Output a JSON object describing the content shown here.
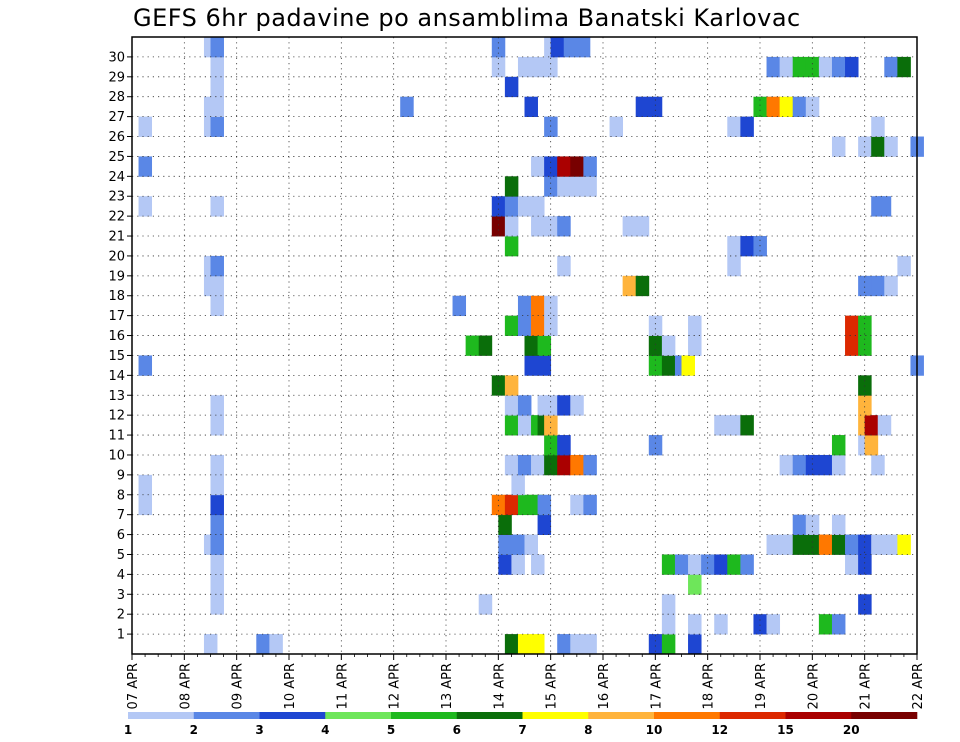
{
  "title": "GEFS 6hr padavine po ansamblima Banatski Karlovac",
  "chart_data": {
    "type": "heatmap",
    "title": "GEFS 6hr padavine po ansamblima Banatski Karlovac",
    "x_start": "07 APR",
    "x_step_hours": 6,
    "x_steps": 60,
    "x_tick_labels": [
      "07 APR",
      "08 APR",
      "09 APR",
      "10 APR",
      "11 APR",
      "12 APR",
      "13 APR",
      "14 APR",
      "15 APR",
      "16 APR",
      "17 APR",
      "18 APR",
      "19 APR",
      "20 APR",
      "21 APR",
      "22 APR"
    ],
    "y_tick_labels": [
      "1",
      "2",
      "3",
      "4",
      "5",
      "6",
      "7",
      "8",
      "9",
      "10",
      "11",
      "12",
      "13",
      "14",
      "15",
      "16",
      "17",
      "18",
      "19",
      "20",
      "21",
      "22",
      "23",
      "24",
      "25",
      "26",
      "27",
      "28",
      "29",
      "30"
    ],
    "ensemble_members": 30,
    "grid": true,
    "colorbar": {
      "labels": [
        "1",
        "2",
        "3",
        "4",
        "5",
        "6",
        "7",
        "8",
        "10",
        "12",
        "15",
        "20"
      ],
      "colors": [
        "#b4c8f5",
        "#5a87e6",
        "#1e46d2",
        "#6ee65a",
        "#1eb91e",
        "#0a6e0a",
        "#ffff00",
        "#ffb43c",
        "#ff7800",
        "#dc2800",
        "#aa0000",
        "#780000"
      ]
    },
    "points": [
      [
        5.5,
        0,
        1
      ],
      [
        9.5,
        0,
        2
      ],
      [
        10.5,
        0,
        1
      ],
      [
        28.5,
        0,
        6
      ],
      [
        29.5,
        0,
        7
      ],
      [
        30.5,
        0,
        7
      ],
      [
        32.5,
        0,
        2
      ],
      [
        33.5,
        0,
        1
      ],
      [
        34.5,
        0,
        1
      ],
      [
        39.5,
        0,
        3
      ],
      [
        40.5,
        0,
        5
      ],
      [
        42.5,
        0,
        3
      ],
      [
        40.5,
        1,
        1
      ],
      [
        42.5,
        1,
        1
      ],
      [
        44.5,
        1,
        1
      ],
      [
        47.5,
        1,
        3
      ],
      [
        48.5,
        1,
        1
      ],
      [
        52.5,
        1,
        5
      ],
      [
        53.5,
        1,
        2
      ],
      [
        6,
        2,
        1
      ],
      [
        26.5,
        2,
        1
      ],
      [
        40.5,
        2,
        1
      ],
      [
        55.5,
        2,
        3
      ],
      [
        6,
        3,
        1
      ],
      [
        42.5,
        3,
        4
      ],
      [
        6,
        4,
        1
      ],
      [
        28,
        4,
        3
      ],
      [
        29,
        4,
        1
      ],
      [
        30.5,
        4,
        1
      ],
      [
        40.5,
        4,
        5
      ],
      [
        41.5,
        4,
        2
      ],
      [
        42.5,
        4,
        1
      ],
      [
        43.5,
        4,
        2
      ],
      [
        44.5,
        4,
        3
      ],
      [
        45.5,
        4,
        5
      ],
      [
        46.5,
        4,
        2
      ],
      [
        54.5,
        4,
        1
      ],
      [
        55.5,
        4,
        3
      ],
      [
        5.5,
        5,
        1
      ],
      [
        6,
        5,
        2
      ],
      [
        28,
        5,
        2
      ],
      [
        29,
        5,
        2
      ],
      [
        30,
        5,
        1
      ],
      [
        48.5,
        5,
        1
      ],
      [
        49.5,
        5,
        1
      ],
      [
        50.5,
        5,
        6
      ],
      [
        51.5,
        5,
        6
      ],
      [
        52.5,
        5,
        9
      ],
      [
        53.5,
        5,
        6
      ],
      [
        54.5,
        5,
        2
      ],
      [
        55.5,
        5,
        3
      ],
      [
        56.5,
        5,
        1
      ],
      [
        57.5,
        5,
        1
      ],
      [
        58.5,
        5,
        7
      ],
      [
        6,
        6,
        2
      ],
      [
        28,
        6,
        6
      ],
      [
        31,
        6,
        3
      ],
      [
        50.5,
        6,
        2
      ],
      [
        51.5,
        6,
        1
      ],
      [
        53.5,
        6,
        1
      ],
      [
        0.5,
        7,
        1
      ],
      [
        6,
        7,
        3
      ],
      [
        27.5,
        7,
        9
      ],
      [
        28.5,
        7,
        10
      ],
      [
        29.5,
        7,
        5
      ],
      [
        30.5,
        7,
        5
      ],
      [
        31,
        7,
        2
      ],
      [
        33.5,
        7,
        1
      ],
      [
        34.5,
        7,
        2
      ],
      [
        0.5,
        8,
        1
      ],
      [
        6,
        8,
        1
      ],
      [
        29,
        8,
        1
      ],
      [
        6,
        9,
        1
      ],
      [
        28.5,
        9,
        1
      ],
      [
        29.5,
        9,
        2
      ],
      [
        30.5,
        9,
        1
      ],
      [
        31.5,
        9,
        6
      ],
      [
        32.5,
        9,
        11
      ],
      [
        33.5,
        9,
        9
      ],
      [
        34.5,
        9,
        2
      ],
      [
        49.5,
        9,
        1
      ],
      [
        50.5,
        9,
        2
      ],
      [
        51.5,
        9,
        3
      ],
      [
        52.5,
        9,
        3
      ],
      [
        53.5,
        9,
        1
      ],
      [
        56.5,
        9,
        1
      ],
      [
        31.5,
        10,
        5
      ],
      [
        32.5,
        10,
        3
      ],
      [
        39.5,
        10,
        2
      ],
      [
        53.5,
        10,
        5
      ],
      [
        55.5,
        10,
        1
      ],
      [
        56,
        10,
        8
      ],
      [
        6,
        11,
        1
      ],
      [
        28.5,
        11,
        5
      ],
      [
        29.5,
        11,
        1
      ],
      [
        30.5,
        11,
        5
      ],
      [
        31,
        11,
        6
      ],
      [
        31.5,
        11,
        8
      ],
      [
        44.5,
        11,
        1
      ],
      [
        45.5,
        11,
        1
      ],
      [
        46.5,
        11,
        6
      ],
      [
        55.5,
        11,
        8
      ],
      [
        56,
        11,
        11
      ],
      [
        57,
        11,
        1
      ],
      [
        6,
        12,
        1
      ],
      [
        28.5,
        12,
        1
      ],
      [
        29.5,
        12,
        2
      ],
      [
        31,
        12,
        1
      ],
      [
        31.5,
        12,
        1
      ],
      [
        32.5,
        12,
        3
      ],
      [
        33.5,
        12,
        1
      ],
      [
        55.5,
        12,
        8
      ],
      [
        27.5,
        13,
        6
      ],
      [
        28.5,
        13,
        8
      ],
      [
        55.5,
        13,
        6
      ],
      [
        0.5,
        14,
        2
      ],
      [
        30,
        14,
        3
      ],
      [
        31,
        14,
        3
      ],
      [
        39.5,
        14,
        5
      ],
      [
        40.5,
        14,
        6
      ],
      [
        41.5,
        14,
        2
      ],
      [
        42,
        14,
        7
      ],
      [
        59.5,
        14,
        2
      ],
      [
        25.5,
        15,
        5
      ],
      [
        26.5,
        15,
        6
      ],
      [
        30,
        15,
        6
      ],
      [
        31,
        15,
        5
      ],
      [
        39.5,
        15,
        6
      ],
      [
        40.5,
        15,
        1
      ],
      [
        42.5,
        15,
        1
      ],
      [
        54.5,
        15,
        10
      ],
      [
        55.5,
        15,
        5
      ],
      [
        28.5,
        16,
        5
      ],
      [
        29.5,
        16,
        2
      ],
      [
        30.5,
        16,
        9
      ],
      [
        31.5,
        16,
        1
      ],
      [
        39.5,
        16,
        1
      ],
      [
        42.5,
        16,
        1
      ],
      [
        54.5,
        16,
        10
      ],
      [
        55.5,
        16,
        5
      ],
      [
        6,
        17,
        1
      ],
      [
        24.5,
        17,
        2
      ],
      [
        29.5,
        17,
        2
      ],
      [
        30.5,
        17,
        9
      ],
      [
        31.5,
        17,
        1
      ],
      [
        5.5,
        18,
        1
      ],
      [
        6,
        18,
        1
      ],
      [
        37.5,
        18,
        8
      ],
      [
        38.5,
        18,
        6
      ],
      [
        55.5,
        18,
        2
      ],
      [
        56.5,
        18,
        2
      ],
      [
        57.5,
        18,
        1
      ],
      [
        5.5,
        19,
        1
      ],
      [
        6,
        19,
        2
      ],
      [
        32.5,
        19,
        1
      ],
      [
        45.5,
        19,
        1
      ],
      [
        58.5,
        19,
        1
      ],
      [
        28.5,
        20,
        5
      ],
      [
        45.5,
        20,
        1
      ],
      [
        46.5,
        20,
        3
      ],
      [
        47.5,
        20,
        2
      ],
      [
        27.5,
        21,
        12
      ],
      [
        28.5,
        21,
        1
      ],
      [
        30.5,
        21,
        1
      ],
      [
        31.5,
        21,
        1
      ],
      [
        32.5,
        21,
        2
      ],
      [
        37.5,
        21,
        1
      ],
      [
        38.5,
        21,
        1
      ],
      [
        0.5,
        22,
        1
      ],
      [
        6,
        22,
        1
      ],
      [
        27.5,
        22,
        3
      ],
      [
        28.5,
        22,
        2
      ],
      [
        29.5,
        22,
        1
      ],
      [
        30.5,
        22,
        1
      ],
      [
        56.5,
        22,
        2
      ],
      [
        57,
        22,
        2
      ],
      [
        28.5,
        23,
        6
      ],
      [
        31.5,
        23,
        2
      ],
      [
        32.5,
        23,
        1
      ],
      [
        33.5,
        23,
        1
      ],
      [
        34.5,
        23,
        1
      ],
      [
        0.5,
        24,
        2
      ],
      [
        30.5,
        24,
        1
      ],
      [
        31.5,
        24,
        3
      ],
      [
        32.5,
        24,
        11
      ],
      [
        33.5,
        24,
        12
      ],
      [
        34.5,
        24,
        2
      ],
      [
        53.5,
        25,
        1
      ],
      [
        55.5,
        25,
        1
      ],
      [
        56.5,
        25,
        6
      ],
      [
        57.5,
        25,
        1
      ],
      [
        59.5,
        25,
        2
      ],
      [
        0.5,
        26,
        1
      ],
      [
        5.5,
        26,
        1
      ],
      [
        6,
        26,
        2
      ],
      [
        31.5,
        26,
        2
      ],
      [
        36.5,
        26,
        1
      ],
      [
        45.5,
        26,
        1
      ],
      [
        46.5,
        26,
        3
      ],
      [
        56.5,
        26,
        1
      ],
      [
        5.5,
        27,
        1
      ],
      [
        6,
        27,
        1
      ],
      [
        20.5,
        27,
        2
      ],
      [
        30,
        27,
        3
      ],
      [
        38.5,
        27,
        3
      ],
      [
        39.5,
        27,
        3
      ],
      [
        47.5,
        27,
        5
      ],
      [
        48.5,
        27,
        9
      ],
      [
        49.5,
        27,
        7
      ],
      [
        50.5,
        27,
        2
      ],
      [
        51.5,
        27,
        1
      ],
      [
        6,
        28,
        1
      ],
      [
        28.5,
        28,
        3
      ],
      [
        6,
        29,
        1
      ],
      [
        27.5,
        29,
        1
      ],
      [
        29.5,
        29,
        1
      ],
      [
        30.5,
        29,
        1
      ],
      [
        31.5,
        29,
        1
      ],
      [
        48.5,
        29,
        2
      ],
      [
        49.5,
        29,
        1
      ],
      [
        50.5,
        29,
        5
      ],
      [
        51.5,
        29,
        5
      ],
      [
        52.5,
        29,
        1
      ],
      [
        53.5,
        29,
        2
      ],
      [
        54.5,
        29,
        3
      ],
      [
        57.5,
        29,
        2
      ],
      [
        58.5,
        29,
        6
      ],
      [
        5.5,
        30,
        1
      ],
      [
        6,
        30,
        2
      ],
      [
        27.5,
        30,
        2
      ],
      [
        31.5,
        30,
        1
      ],
      [
        32,
        30,
        3
      ],
      [
        33,
        30,
        2
      ],
      [
        34,
        30,
        2
      ]
    ]
  }
}
